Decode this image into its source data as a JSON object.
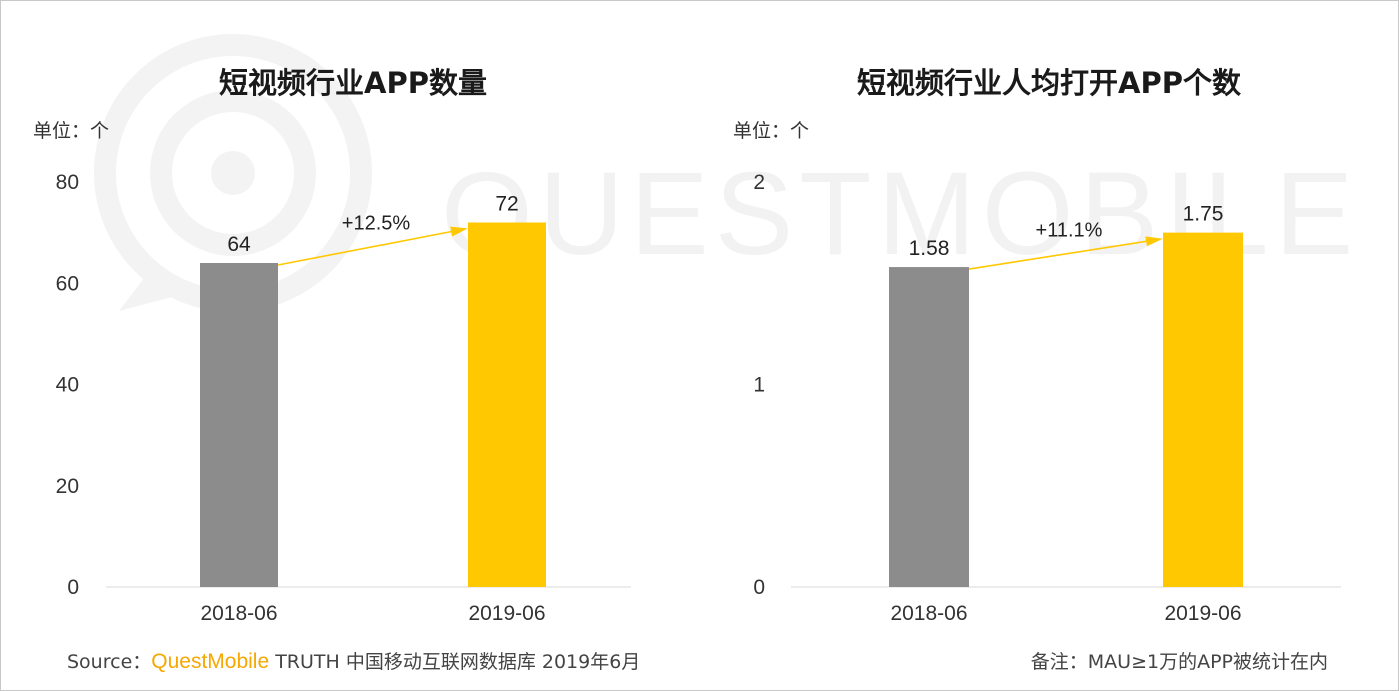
{
  "watermark": {
    "text": "QUESTMOBILE"
  },
  "chart_data": [
    {
      "type": "bar",
      "title": "短视频行业APP数量",
      "unit_label": "单位：个",
      "categories": [
        "2018-06",
        "2019-06"
      ],
      "values": [
        64,
        72
      ],
      "value_labels": [
        "64",
        "72"
      ],
      "ylim": [
        0,
        80
      ],
      "yticks": [
        0,
        20,
        40,
        60,
        80
      ],
      "growth_label": "+12.5%",
      "colors": [
        "#8c8c8c",
        "#ffc800"
      ],
      "grid": false
    },
    {
      "type": "bar",
      "title": "短视频行业人均打开APP个数",
      "unit_label": "单位：个",
      "categories": [
        "2018-06",
        "2019-06"
      ],
      "values": [
        1.58,
        1.75
      ],
      "value_labels": [
        "1.58",
        "1.75"
      ],
      "ylim": [
        0,
        2
      ],
      "yticks": [
        0,
        1,
        2
      ],
      "growth_label": "+11.1%",
      "colors": [
        "#8c8c8c",
        "#ffc800"
      ],
      "grid": false
    }
  ],
  "footer": {
    "source_prefix": "Source：",
    "source_brand": "QuestMobile",
    "source_text": " TRUTH 中国移动互联网数据库 2019年6月",
    "note": "备注：MAU≥1万的APP被统计在内"
  },
  "arrow_color": "#ffc800"
}
